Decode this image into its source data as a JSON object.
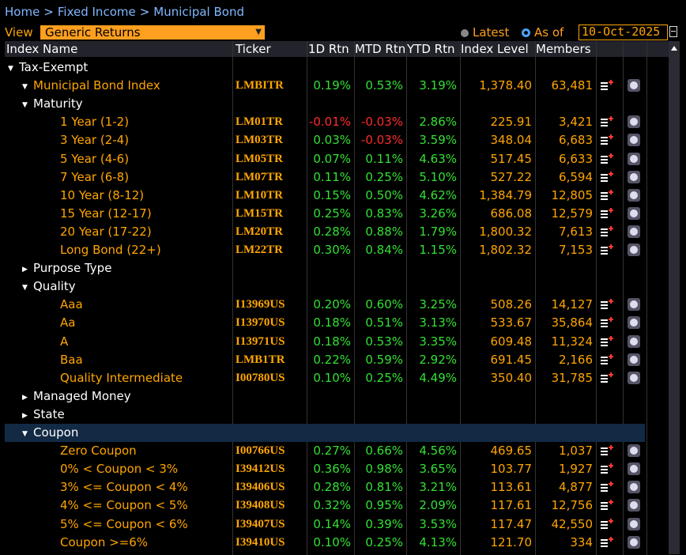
{
  "breadcrumb": [
    "Home",
    "Fixed Income",
    "Municipal Bond"
  ],
  "view": {
    "label": "View",
    "selected": "Generic Returns"
  },
  "date_mode": {
    "latest": "Latest",
    "asof": "As of",
    "date": "10-Oct-2025"
  },
  "columns": [
    "Index Name",
    "Ticker",
    "1D Rtn",
    "MTD Rtn",
    "YTD Rtn",
    "Index Level",
    "Members"
  ],
  "rows": [
    {
      "type": "group",
      "level": 0,
      "expanded": true,
      "name": "Tax-Exempt"
    },
    {
      "type": "index",
      "level": 1,
      "expanded": true,
      "name": "Municipal Bond Index",
      "ticker": "LMBITR",
      "d1": "0.19%",
      "mtd": "0.53%",
      "ytd": "3.19%",
      "level_val": "1,378.40",
      "members": "63,481"
    },
    {
      "type": "group",
      "level": 1,
      "expanded": true,
      "name": "Maturity"
    },
    {
      "type": "index",
      "level": 2,
      "name": "1 Year (1-2)",
      "ticker": "LM01TR",
      "d1": "-0.01%",
      "mtd": "-0.03%",
      "ytd": "2.86%",
      "level_val": "225.91",
      "members": "3,421"
    },
    {
      "type": "index",
      "level": 2,
      "name": "3 Year (2-4)",
      "ticker": "LM03TR",
      "d1": "0.03%",
      "mtd": "-0.03%",
      "ytd": "3.59%",
      "level_val": "348.04",
      "members": "6,683"
    },
    {
      "type": "index",
      "level": 2,
      "name": "5 Year (4-6)",
      "ticker": "LM05TR",
      "d1": "0.07%",
      "mtd": "0.11%",
      "ytd": "4.63%",
      "level_val": "517.45",
      "members": "6,633"
    },
    {
      "type": "index",
      "level": 2,
      "name": "7 Year (6-8)",
      "ticker": "LM07TR",
      "d1": "0.11%",
      "mtd": "0.25%",
      "ytd": "5.10%",
      "level_val": "527.22",
      "members": "6,594"
    },
    {
      "type": "index",
      "level": 2,
      "name": "10 Year (8-12)",
      "ticker": "LM10TR",
      "d1": "0.15%",
      "mtd": "0.50%",
      "ytd": "4.62%",
      "level_val": "1,384.79",
      "members": "12,805"
    },
    {
      "type": "index",
      "level": 2,
      "name": "15 Year (12-17)",
      "ticker": "LM15TR",
      "d1": "0.25%",
      "mtd": "0.83%",
      "ytd": "3.26%",
      "level_val": "686.08",
      "members": "12,579"
    },
    {
      "type": "index",
      "level": 2,
      "name": "20 Year (17-22)",
      "ticker": "LM20TR",
      "d1": "0.28%",
      "mtd": "0.88%",
      "ytd": "1.79%",
      "level_val": "1,800.32",
      "members": "7,613"
    },
    {
      "type": "index",
      "level": 2,
      "name": "Long Bond (22+)",
      "ticker": "LM22TR",
      "d1": "0.30%",
      "mtd": "0.84%",
      "ytd": "1.15%",
      "level_val": "1,802.32",
      "members": "7,153"
    },
    {
      "type": "group",
      "level": 1,
      "expanded": false,
      "name": "Purpose Type"
    },
    {
      "type": "group",
      "level": 1,
      "expanded": true,
      "name": "Quality"
    },
    {
      "type": "index",
      "level": 2,
      "name": "Aaa",
      "ticker": "I13969US",
      "d1": "0.20%",
      "mtd": "0.60%",
      "ytd": "3.25%",
      "level_val": "508.26",
      "members": "14,127"
    },
    {
      "type": "index",
      "level": 2,
      "name": "Aa",
      "ticker": "I13970US",
      "d1": "0.18%",
      "mtd": "0.51%",
      "ytd": "3.13%",
      "level_val": "533.67",
      "members": "35,864"
    },
    {
      "type": "index",
      "level": 2,
      "name": "A",
      "ticker": "I13971US",
      "d1": "0.18%",
      "mtd": "0.53%",
      "ytd": "3.35%",
      "level_val": "609.48",
      "members": "11,324"
    },
    {
      "type": "index",
      "level": 2,
      "name": "Baa",
      "ticker": "LMB1TR",
      "d1": "0.22%",
      "mtd": "0.59%",
      "ytd": "2.92%",
      "level_val": "691.45",
      "members": "2,166"
    },
    {
      "type": "index",
      "level": 2,
      "name": "Quality Intermediate",
      "ticker": "I00780US",
      "d1": "0.10%",
      "mtd": "0.25%",
      "ytd": "4.49%",
      "level_val": "350.40",
      "members": "31,785"
    },
    {
      "type": "group",
      "level": 1,
      "expanded": false,
      "name": "Managed Money"
    },
    {
      "type": "group",
      "level": 1,
      "expanded": false,
      "name": "State"
    },
    {
      "type": "group",
      "level": 1,
      "expanded": true,
      "selected": true,
      "name": "Coupon"
    },
    {
      "type": "index",
      "level": 2,
      "name": "Zero Coupon",
      "ticker": "I00766US",
      "d1": "0.27%",
      "mtd": "0.66%",
      "ytd": "4.56%",
      "level_val": "469.65",
      "members": "1,037"
    },
    {
      "type": "index",
      "level": 2,
      "name": "0% < Coupon < 3%",
      "ticker": "I39412US",
      "d1": "0.36%",
      "mtd": "0.98%",
      "ytd": "3.65%",
      "level_val": "103.77",
      "members": "1,927"
    },
    {
      "type": "index",
      "level": 2,
      "name": "3% <= Coupon < 4%",
      "ticker": "I39406US",
      "d1": "0.28%",
      "mtd": "0.81%",
      "ytd": "3.21%",
      "level_val": "113.61",
      "members": "4,877"
    },
    {
      "type": "index",
      "level": 2,
      "name": "4% <= Coupon < 5%",
      "ticker": "I39408US",
      "d1": "0.32%",
      "mtd": "0.95%",
      "ytd": "2.09%",
      "level_val": "117.61",
      "members": "12,756"
    },
    {
      "type": "index",
      "level": 2,
      "name": "5% <= Coupon < 6%",
      "ticker": "I39407US",
      "d1": "0.14%",
      "mtd": "0.39%",
      "ytd": "3.53%",
      "level_val": "117.47",
      "members": "42,550"
    },
    {
      "type": "index",
      "level": 2,
      "name": "Coupon >=6%",
      "ticker": "I39410US",
      "d1": "0.10%",
      "mtd": "0.25%",
      "ytd": "4.13%",
      "level_val": "121.70",
      "members": "334"
    }
  ],
  "colors": {
    "accent": "#ffa500",
    "positive": "#33e033",
    "negative": "#ff2b2b",
    "link": "#7fb7ff",
    "selected_row": "#132a45"
  },
  "icons": {
    "add_to_list": "add-to-list-icon",
    "chart": "chart-icon"
  }
}
